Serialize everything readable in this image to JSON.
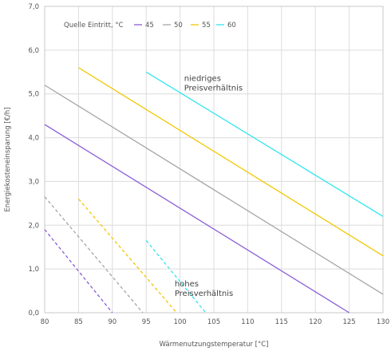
{
  "chart_data": {
    "type": "line",
    "xlabel": "Wärmenutzungstemperatur [°C]",
    "ylabel": "Energiekosteneinsparung [€/h]",
    "xlim": [
      80,
      130
    ],
    "ylim": [
      0,
      7
    ],
    "x_ticks": [
      "80",
      "85",
      "90",
      "95",
      "100",
      "105",
      "110",
      "115",
      "120",
      "125",
      "130"
    ],
    "y_ticks": [
      "0,0",
      "1,0",
      "2,0",
      "3,0",
      "4,0",
      "5,0",
      "6,0",
      "7,0"
    ],
    "grid": true,
    "legend": {
      "title": "Quelle Eintritt, °C",
      "placement": "top-left",
      "entries": [
        "45",
        "50",
        "55",
        "60"
      ]
    },
    "colors": {
      "45": "#8b5cd6",
      "50": "#a6a6a6",
      "55": "#f2c700",
      "60": "#33e6ee"
    },
    "series": [
      {
        "name": "45",
        "group": "niedriges Preisverhältnis",
        "style": "solid",
        "x": [
          80,
          125
        ],
        "y": [
          4.3,
          0.0
        ]
      },
      {
        "name": "50",
        "group": "niedriges Preisverhältnis",
        "style": "solid",
        "x": [
          80,
          130
        ],
        "y": [
          5.2,
          0.42
        ]
      },
      {
        "name": "55",
        "group": "niedriges Preisverhältnis",
        "style": "solid",
        "x": [
          85,
          130
        ],
        "y": [
          5.6,
          1.3
        ]
      },
      {
        "name": "60",
        "group": "niedriges Preisverhältnis",
        "style": "solid",
        "x": [
          95,
          130
        ],
        "y": [
          5.5,
          2.2
        ]
      },
      {
        "name": "45",
        "group": "hohes Preisverhältnis",
        "style": "dashed",
        "x": [
          80,
          90
        ],
        "y": [
          1.9,
          0.0
        ]
      },
      {
        "name": "50",
        "group": "hohes Preisverhältnis",
        "style": "dashed",
        "x": [
          80,
          94.5
        ],
        "y": [
          2.65,
          0.0
        ]
      },
      {
        "name": "55",
        "group": "hohes Preisverhältnis",
        "style": "dashed",
        "x": [
          85,
          99.5
        ],
        "y": [
          2.6,
          0.0
        ]
      },
      {
        "name": "60",
        "group": "hohes Preisverhältnis",
        "style": "dashed",
        "x": [
          95,
          103.8
        ],
        "y": [
          1.65,
          0.0
        ]
      }
    ],
    "annotations": [
      {
        "lines": [
          "niedriges",
          "Preisverhältnis"
        ],
        "x": 100.6,
        "y": 5.3
      },
      {
        "lines": [
          "hohes",
          "Preisverhältnis"
        ],
        "x": 99.2,
        "y": 0.6
      }
    ]
  }
}
